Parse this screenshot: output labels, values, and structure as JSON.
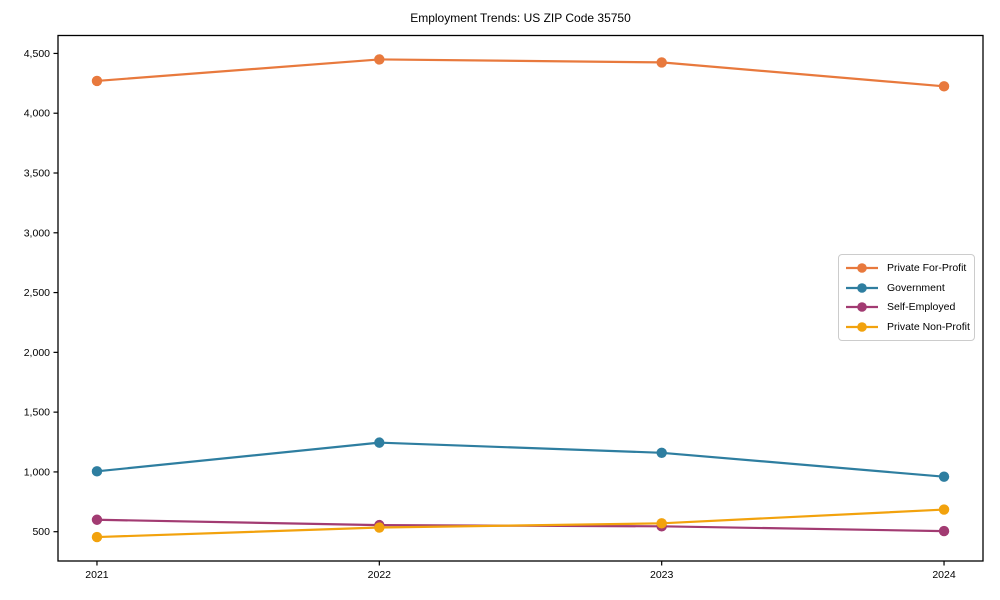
{
  "figure": {
    "title": "Employment Trends: US ZIP Code 35750"
  },
  "chart_data": {
    "type": "line",
    "title": "Employment Trends: US ZIP Code 35750",
    "xlabel": "",
    "ylabel": "",
    "categories": [
      "2021",
      "2022",
      "2023",
      "2024"
    ],
    "series": [
      {
        "name": "Private For-Profit",
        "color": "#E8793D",
        "values": [
          4270,
          4450,
          4425,
          4225
        ]
      },
      {
        "name": "Government",
        "color": "#2E7EA0",
        "values": [
          1005,
          1245,
          1160,
          960
        ]
      },
      {
        "name": "Self-Employed",
        "color": "#A23B72",
        "values": [
          600,
          555,
          545,
          505
        ]
      },
      {
        "name": "Private Non-Profit",
        "color": "#F2A20D",
        "values": [
          455,
          535,
          570,
          685
        ]
      }
    ],
    "y_ticks": {
      "values": [
        500,
        1000,
        1500,
        2000,
        2500,
        3000,
        3500,
        4000,
        4500
      ],
      "labels": [
        "500",
        "1,000",
        "1,500",
        "2,000",
        "2,500",
        "3,000",
        "3,500",
        "4,000",
        "4,500"
      ]
    },
    "ylim": [
      255,
      4650
    ],
    "x_margin_frac": 0.138,
    "grid": false,
    "legend_position": "center right",
    "axis_color": "#000000",
    "background": "#ffffff"
  }
}
